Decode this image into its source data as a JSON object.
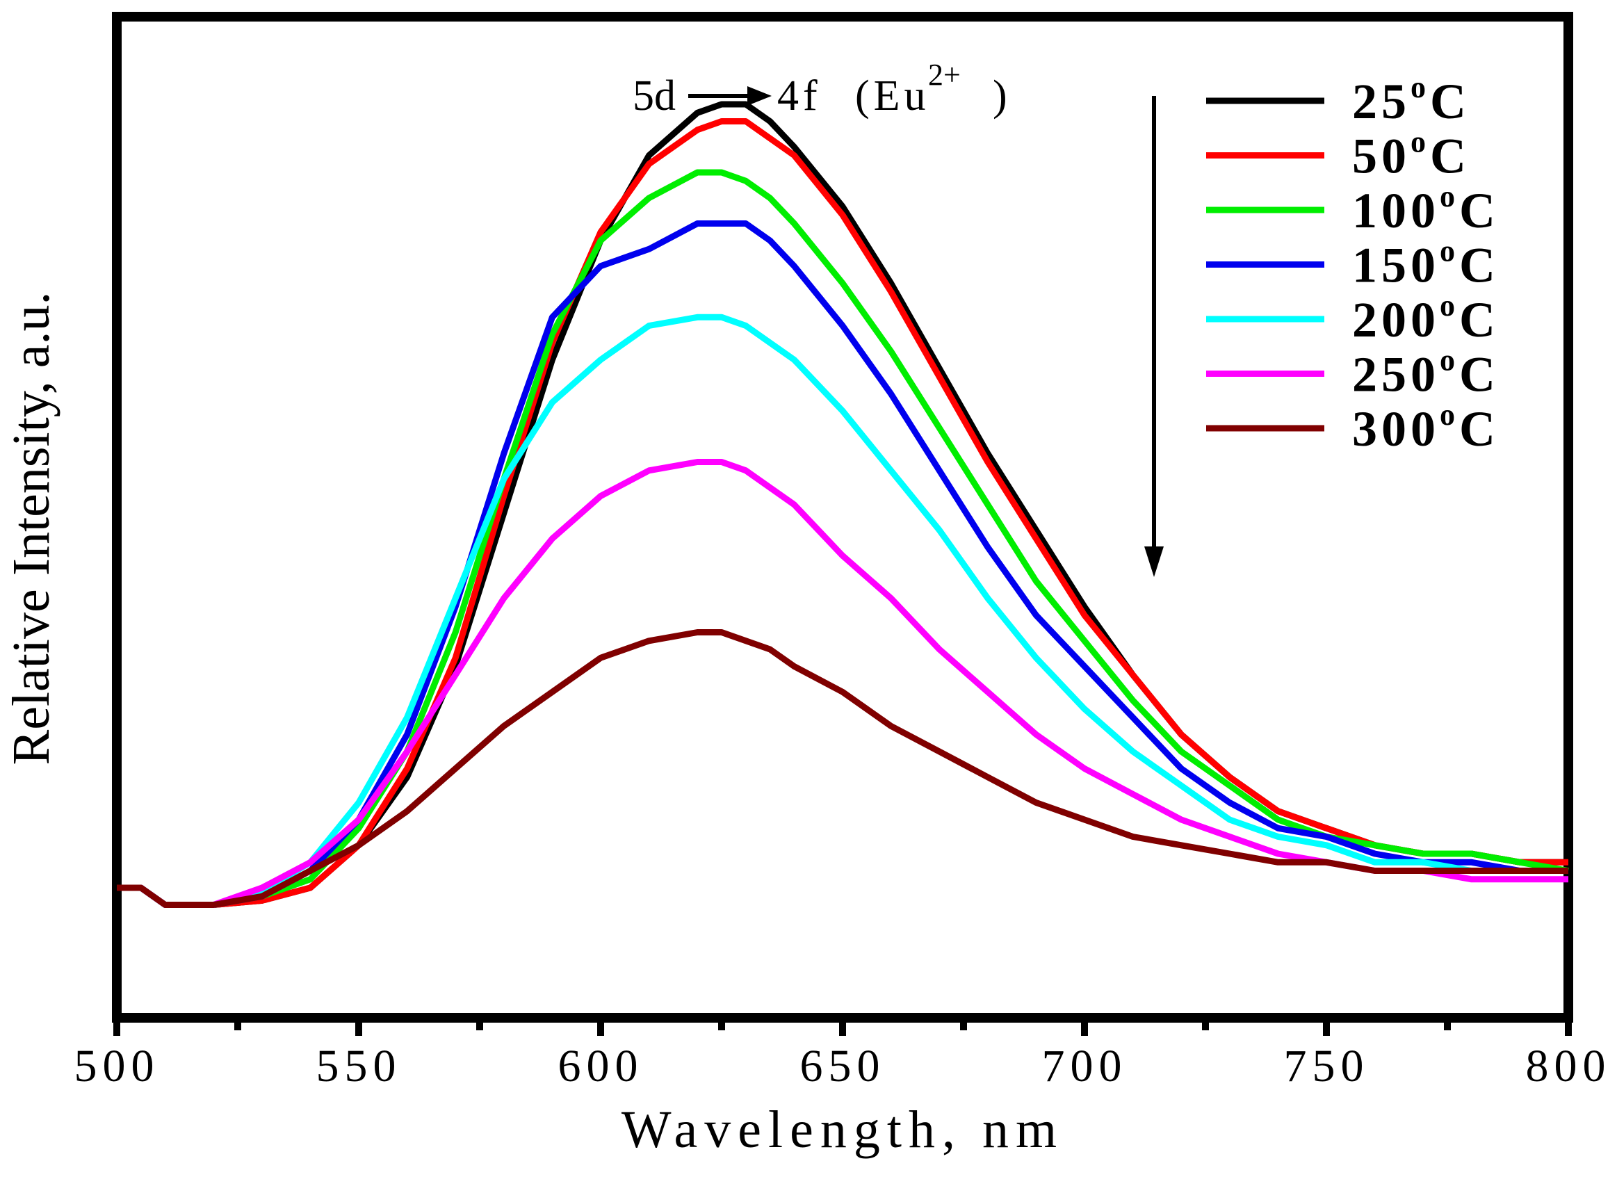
{
  "chart_data": {
    "type": "line",
    "title": "",
    "xlabel": "Wavelength, nm",
    "ylabel": "Relative Intensity, a.u.",
    "xlim": [
      500,
      800
    ],
    "ylim": [
      0,
      100
    ],
    "xticks": [
      500,
      550,
      600,
      650,
      700,
      750,
      800
    ],
    "xtick_labels": [
      "500",
      "550",
      "600",
      "650",
      "700",
      "750",
      "800"
    ],
    "yticks_shown": false,
    "grid": false,
    "legend_position": "top-right",
    "annotation": {
      "from": "5d",
      "to": "4f",
      "ion": "(Eu",
      "superscript": "2+",
      "close": ")"
    },
    "arrow_note": "intensity decreases with increasing temperature",
    "x": [
      500,
      505,
      510,
      520,
      530,
      540,
      550,
      560,
      570,
      580,
      590,
      600,
      610,
      620,
      625,
      630,
      635,
      640,
      650,
      660,
      670,
      680,
      690,
      700,
      710,
      720,
      730,
      740,
      750,
      760,
      770,
      780,
      790,
      800
    ],
    "series": [
      {
        "name": "25",
        "label": "25",
        "color": "#000000",
        "values": [
          8,
          8,
          6,
          6,
          6.5,
          8,
          13,
          21,
          34,
          52,
          70,
          84,
          94,
          99,
          100,
          100,
          98,
          95,
          88,
          79,
          69,
          59,
          50,
          41,
          33,
          26,
          21,
          17,
          15,
          13,
          12,
          12,
          11,
          11
        ]
      },
      {
        "name": "50",
        "label": "50",
        "color": "#ff0000",
        "values": [
          8,
          8,
          6,
          6,
          6.5,
          8,
          13,
          22,
          35,
          54,
          72,
          85,
          93,
          97,
          98,
          98,
          96,
          94,
          87,
          78,
          68,
          58,
          49,
          40,
          33,
          26,
          21,
          17,
          15,
          13,
          12,
          12,
          11,
          11
        ]
      },
      {
        "name": "100",
        "label": "100",
        "color": "#00ee00",
        "values": [
          8,
          8,
          6,
          6,
          7,
          9,
          15,
          24,
          38,
          56,
          73,
          84,
          89,
          92,
          92,
          91,
          89,
          86,
          79,
          71,
          62,
          53,
          44,
          37,
          30,
          24,
          20,
          16,
          14,
          13,
          12,
          12,
          11,
          10
        ]
      },
      {
        "name": "150",
        "label": "150",
        "color": "#0000ee",
        "values": [
          8,
          8,
          6,
          6,
          7,
          10,
          16,
          26,
          41,
          59,
          75,
          81,
          83,
          86,
          86,
          86,
          84,
          81,
          74,
          66,
          57,
          48,
          40,
          34,
          28,
          22,
          18,
          15,
          14,
          12,
          11,
          11,
          10,
          10
        ]
      },
      {
        "name": "200",
        "label": "200",
        "color": "#00ffff",
        "values": [
          8,
          8,
          6,
          6,
          7.5,
          11,
          18,
          28,
          42,
          56,
          65,
          70,
          74,
          75,
          75,
          74,
          72,
          70,
          64,
          57,
          50,
          42,
          35,
          29,
          24,
          20,
          16,
          14,
          13,
          11,
          11,
          10,
          10,
          10
        ]
      },
      {
        "name": "250",
        "label": "250",
        "color": "#ff00ff",
        "values": [
          8,
          8,
          6,
          6,
          8,
          11,
          16,
          24,
          33,
          42,
          49,
          54,
          57,
          58,
          58,
          57,
          55,
          53,
          47,
          42,
          36,
          31,
          26,
          22,
          19,
          16,
          14,
          12,
          11,
          10,
          10,
          9,
          9,
          9
        ]
      },
      {
        "name": "300",
        "label": "300",
        "color": "#800000",
        "values": [
          8,
          8,
          6,
          6,
          7,
          10,
          13,
          17,
          22,
          27,
          31,
          35,
          37,
          38,
          38,
          37,
          36,
          34,
          31,
          27,
          24,
          21,
          18,
          16,
          14,
          13,
          12,
          11,
          11,
          10,
          10,
          10,
          10,
          10
        ]
      }
    ],
    "unit_suffix": "C",
    "degree_mark": "o"
  }
}
